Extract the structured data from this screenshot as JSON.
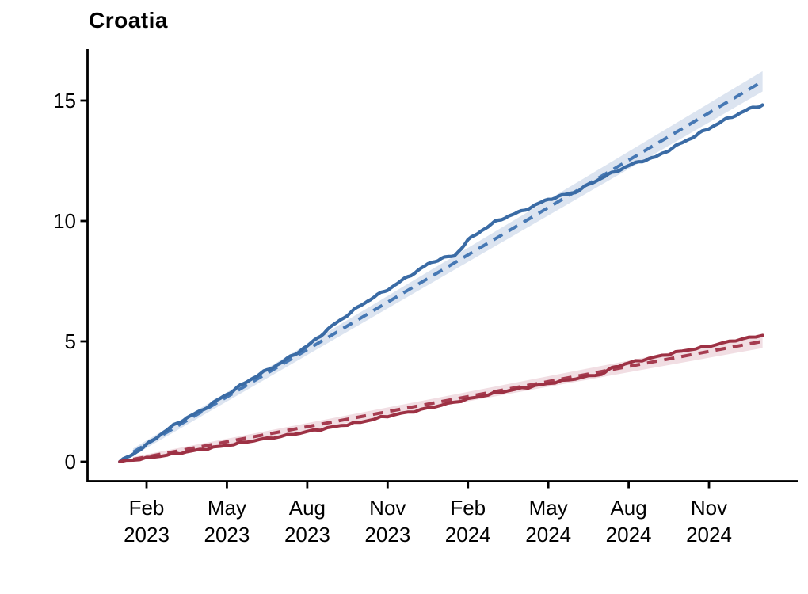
{
  "chart_data": {
    "type": "line",
    "title": "Croatia",
    "x_axis": {
      "epoch": "months since Jan 2023",
      "range_months": [
        0,
        24
      ],
      "ticks": [
        {
          "m": 1,
          "month": "Feb",
          "year": "2023"
        },
        {
          "m": 4,
          "month": "May",
          "year": "2023"
        },
        {
          "m": 7,
          "month": "Aug",
          "year": "2023"
        },
        {
          "m": 10,
          "month": "Nov",
          "year": "2023"
        },
        {
          "m": 13,
          "month": "Feb",
          "year": "2024"
        },
        {
          "m": 16,
          "month": "May",
          "year": "2024"
        },
        {
          "m": 19,
          "month": "Aug",
          "year": "2024"
        },
        {
          "m": 22,
          "month": "Nov",
          "year": "2024"
        }
      ]
    },
    "y_axis": {
      "tick_values": [
        0,
        5,
        10,
        15
      ],
      "tick_labels": [
        "0",
        "5",
        "10",
        "15"
      ],
      "range": [
        0,
        17.2
      ]
    },
    "legend": null,
    "grid": false,
    "series": [
      {
        "name": "blue-trend-dashed",
        "kind": "trend",
        "line_style": "dashed",
        "color": "#4678B4",
        "band_color": "#DCE4F0",
        "band_halfwidth_units": [
          0.15,
          0.42
        ],
        "stroke_width": 4,
        "points": [
          [
            0.5,
            0.4
          ],
          [
            24,
            15.8
          ]
        ]
      },
      {
        "name": "red-trend-dashed",
        "kind": "trend",
        "line_style": "dashed",
        "color": "#A63C50",
        "band_color": "#F1DEE3",
        "band_halfwidth_units": [
          0.1,
          0.28
        ],
        "stroke_width": 4,
        "points": [
          [
            0.5,
            0.1
          ],
          [
            24,
            5.0
          ]
        ]
      },
      {
        "name": "blue-observed-solid",
        "kind": "observed",
        "line_style": "solid",
        "color": "#3A6BA5",
        "stroke_width": 4.2,
        "wiggle": true,
        "points": [
          [
            0,
            0
          ],
          [
            0.5,
            0.32
          ],
          [
            1,
            0.7
          ],
          [
            1.5,
            1.12
          ],
          [
            2,
            1.5
          ],
          [
            2.5,
            1.82
          ],
          [
            3,
            2.1
          ],
          [
            3.5,
            2.45
          ],
          [
            4,
            2.8
          ],
          [
            4.5,
            3.15
          ],
          [
            5,
            3.5
          ],
          [
            5.5,
            3.8
          ],
          [
            6,
            4.1
          ],
          [
            6.5,
            4.45
          ],
          [
            7,
            4.8
          ],
          [
            7.5,
            5.25
          ],
          [
            8,
            5.7
          ],
          [
            8.5,
            6.1
          ],
          [
            9,
            6.5
          ],
          [
            9.5,
            6.85
          ],
          [
            10,
            7.15
          ],
          [
            10.5,
            7.5
          ],
          [
            11,
            7.85
          ],
          [
            11.5,
            8.2
          ],
          [
            12,
            8.45
          ],
          [
            12.5,
            8.55
          ],
          [
            13,
            9.2
          ],
          [
            13.5,
            9.6
          ],
          [
            14,
            9.95
          ],
          [
            14.5,
            10.2
          ],
          [
            15,
            10.4
          ],
          [
            15.5,
            10.65
          ],
          [
            16,
            10.9
          ],
          [
            16.5,
            11.05
          ],
          [
            17,
            11.2
          ],
          [
            17.5,
            11.5
          ],
          [
            18,
            11.8
          ],
          [
            18.5,
            12.05
          ],
          [
            19,
            12.3
          ],
          [
            19.5,
            12.5
          ],
          [
            20,
            12.65
          ],
          [
            20.5,
            12.95
          ],
          [
            21,
            13.25
          ],
          [
            21.5,
            13.55
          ],
          [
            22,
            13.85
          ],
          [
            22.5,
            14.15
          ],
          [
            23,
            14.4
          ],
          [
            23.5,
            14.65
          ],
          [
            24,
            14.82
          ]
        ]
      },
      {
        "name": "red-observed-solid",
        "kind": "observed",
        "line_style": "solid",
        "color": "#9D3144",
        "stroke_width": 4,
        "wiggle": true,
        "points": [
          [
            0,
            0
          ],
          [
            1,
            0.15
          ],
          [
            2,
            0.32
          ],
          [
            3,
            0.5
          ],
          [
            4,
            0.68
          ],
          [
            5,
            0.88
          ],
          [
            6,
            1.05
          ],
          [
            7,
            1.25
          ],
          [
            8,
            1.45
          ],
          [
            9,
            1.65
          ],
          [
            10,
            1.9
          ],
          [
            11,
            2.1
          ],
          [
            12,
            2.35
          ],
          [
            13,
            2.6
          ],
          [
            14,
            2.85
          ],
          [
            15,
            3.05
          ],
          [
            16,
            3.25
          ],
          [
            17,
            3.45
          ],
          [
            18,
            3.65
          ],
          [
            18.5,
            3.95
          ],
          [
            19,
            4.1
          ],
          [
            20,
            4.35
          ],
          [
            21,
            4.6
          ],
          [
            22,
            4.8
          ],
          [
            23,
            5.05
          ],
          [
            24,
            5.25
          ]
        ]
      }
    ],
    "axis_color": "#000000",
    "background_color": "#ffffff"
  }
}
